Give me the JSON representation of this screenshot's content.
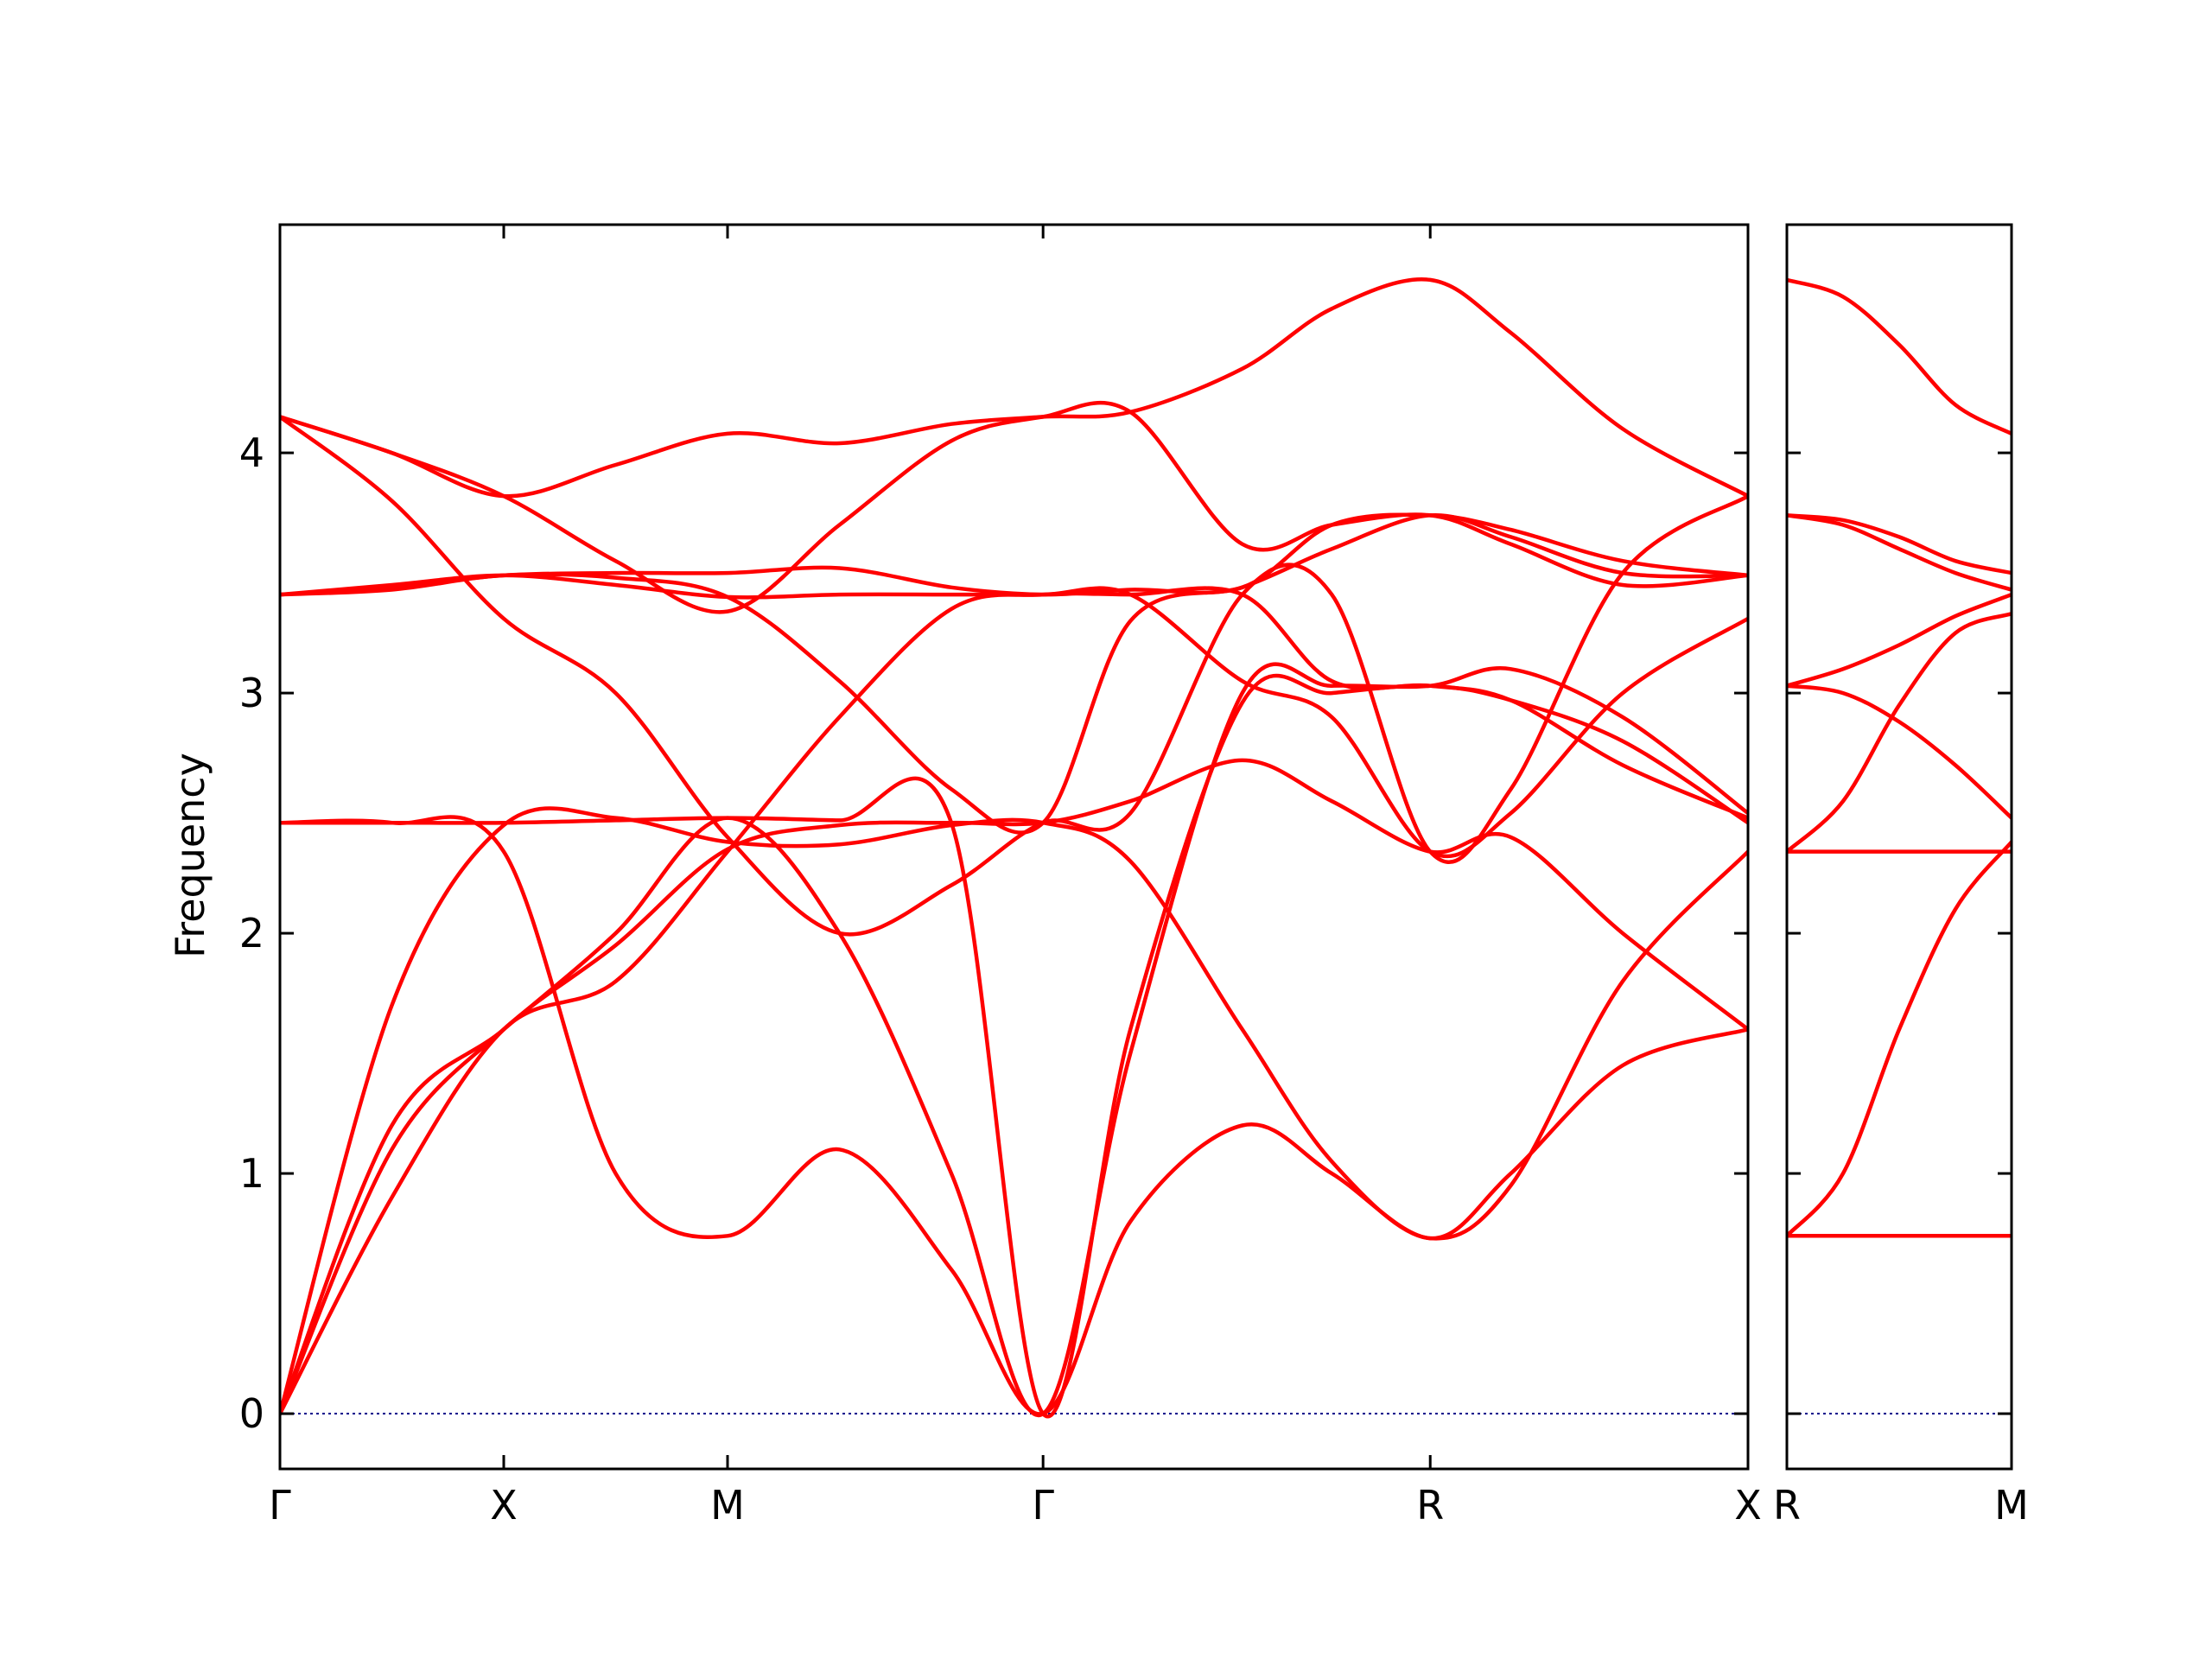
{
  "chart_data": {
    "type": "line",
    "ylabel": "Frequency",
    "ylim": [
      -0.23,
      4.95
    ],
    "yticks": [
      0,
      1,
      2,
      3,
      4
    ],
    "line_color": "#ff0000",
    "zero_line_color": "#00008b",
    "grid": false,
    "panels": [
      {
        "xlim": [
          0,
          6.56
        ],
        "points": [
          {
            "label": "Γ",
            "x": 0
          },
          {
            "label": "X",
            "x": 1.0
          },
          {
            "label": "M",
            "x": 2.0
          },
          {
            "label": "Γ",
            "x": 3.41
          },
          {
            "label": "R",
            "x": 5.14
          },
          {
            "label": "X",
            "x": 6.56
          }
        ],
        "bands": [
          {
            "x": [
              0,
              0.5,
              1.0,
              1.5,
              2.0,
              2.5,
              3.0,
              3.41,
              3.8,
              4.3,
              4.7,
              5.14,
              5.5,
              6.0,
              6.56
            ],
            "y": [
              0,
              1.1,
              1.6,
              1.95,
              2.35,
              2.45,
              2.46,
              2.46,
              2.55,
              2.72,
              2.55,
              2.34,
              2.4,
              2.0,
              1.6
            ]
          },
          {
            "x": [
              0,
              0.5,
              1.0,
              1.5,
              2.0,
              2.5,
              3.0,
              3.41,
              3.8,
              4.3,
              4.7,
              5.14,
              5.5,
              6.0,
              6.56
            ],
            "y": [
              0,
              1.7,
              2.45,
              2.48,
              2.38,
              2.37,
              2.45,
              2.46,
              2.3,
              1.6,
              1.05,
              0.73,
              1.0,
              1.45,
              1.6
            ]
          },
          {
            "x": [
              0,
              0.5,
              1.0,
              1.5,
              2.0,
              2.5,
              3.0,
              3.41,
              3.8,
              4.3,
              4.7,
              5.14,
              5.5,
              6.0,
              6.56
            ],
            "y": [
              2.46,
              2.46,
              2.34,
              1.0,
              0.74,
              1.1,
              0.6,
              0,
              0.8,
              1.2,
              1.0,
              0.73,
              0.95,
              1.8,
              2.34
            ]
          },
          {
            "x": [
              0,
              0.5,
              1.0,
              1.5,
              2.0,
              2.5,
              3.0,
              3.41,
              3.8,
              4.3,
              4.7,
              5.14,
              5.5,
              6.0,
              6.56
            ],
            "y": [
              2.46,
              2.46,
              2.46,
              2.47,
              2.48,
              2.47,
              2.46,
              0,
              1.6,
              2.96,
              3.0,
              3.03,
              2.97,
              2.8,
              2.46
            ]
          },
          {
            "x": [
              0,
              0.5,
              1.0,
              1.5,
              2.0,
              2.5,
              3.0,
              3.41,
              3.8,
              4.3,
              4.7,
              5.14,
              5.5,
              6.0,
              6.56
            ],
            "y": [
              0,
              1.2,
              1.6,
              2.0,
              2.48,
              2.0,
              1.0,
              0,
              1.5,
              3.0,
              3.03,
              3.03,
              3.1,
              2.9,
              2.5
            ]
          },
          {
            "x": [
              0,
              0.5,
              1.0,
              1.5,
              2.0,
              2.5,
              3.0,
              3.41,
              3.8,
              4.3,
              4.7,
              5.14,
              5.5,
              6.0,
              6.56
            ],
            "y": [
              3.41,
              3.43,
              3.49,
              3.48,
              3.4,
              3.05,
              2.6,
              2.46,
              3.3,
              3.44,
              3.6,
              3.74,
              3.65,
              3.5,
              3.49
            ]
          },
          {
            "x": [
              0,
              0.5,
              1.0,
              1.5,
              2.0,
              2.5,
              3.0,
              3.41,
              3.8,
              4.3,
              4.7,
              5.14,
              5.5,
              6.0,
              6.56
            ],
            "y": [
              3.41,
              3.44,
              3.49,
              3.5,
              3.5,
              3.52,
              3.44,
              3.41,
              3.43,
              3.44,
              3.7,
              3.74,
              3.68,
              3.55,
              3.49
            ]
          },
          {
            "x": [
              0,
              0.5,
              1.0,
              1.5,
              2.0,
              2.5,
              3.0,
              3.41,
              3.8,
              4.3,
              4.7,
              5.14,
              5.5,
              6.0,
              6.56
            ],
            "y": [
              4.15,
              3.8,
              3.31,
              3.0,
              2.4,
              2.0,
              2.2,
              2.46,
              2.5,
              3.41,
              3.41,
              2.34,
              2.6,
              3.5,
              3.82
            ]
          },
          {
            "x": [
              0,
              0.5,
              1.0,
              1.5,
              2.0,
              2.5,
              3.0,
              3.41,
              3.8,
              4.3,
              4.7,
              5.14,
              5.5,
              6.0,
              6.56
            ],
            "y": [
              4.15,
              4.0,
              3.82,
              3.55,
              3.34,
              3.7,
              4.05,
              4.15,
              4.17,
              3.62,
              3.7,
              3.74,
              3.62,
              3.45,
              3.49
            ]
          },
          {
            "x": [
              0,
              0.5,
              1.0,
              1.5,
              2.0,
              2.5,
              3.0,
              3.41,
              3.8,
              4.3,
              4.7,
              5.14,
              5.5,
              6.0,
              6.56
            ],
            "y": [
              4.15,
              4.0,
              3.82,
              3.95,
              4.08,
              4.04,
              4.12,
              4.15,
              4.17,
              4.35,
              4.6,
              4.72,
              4.5,
              4.1,
              3.82
            ]
          },
          {
            "x": [
              0,
              0.5,
              1.0,
              1.5,
              2.0,
              2.5,
              3.0,
              3.41,
              3.8,
              4.3,
              4.7,
              5.14,
              5.5,
              6.0,
              6.56
            ],
            "y": [
              3.41,
              3.45,
              3.49,
              3.45,
              3.4,
              3.41,
              3.41,
              3.41,
              3.41,
              3.05,
              2.9,
              2.34,
              2.5,
              3.0,
              3.31
            ]
          },
          {
            "x": [
              0,
              0.5,
              1.0,
              1.5,
              2.0,
              2.5,
              3.0,
              3.41,
              3.8,
              4.3,
              4.7,
              5.14,
              5.5,
              6.0,
              6.56
            ],
            "y": [
              0,
              0.9,
              1.6,
              1.8,
              2.34,
              2.9,
              3.35,
              3.41,
              3.41,
              3.41,
              3.05,
              3.03,
              2.97,
              2.7,
              2.48
            ]
          }
        ]
      },
      {
        "xlim": [
          0,
          1.0
        ],
        "points": [
          {
            "label": "R",
            "x": 0
          },
          {
            "label": "M",
            "x": 1.0
          }
        ],
        "bands": [
          {
            "x": [
              0,
              1.0
            ],
            "y": [
              0.74,
              0.74
            ]
          },
          {
            "x": [
              0,
              0.25,
              0.5,
              0.75,
              1.0
            ],
            "y": [
              0.74,
              1.0,
              1.6,
              2.1,
              2.38
            ]
          },
          {
            "x": [
              0,
              1.0
            ],
            "y": [
              2.34,
              2.34
            ]
          },
          {
            "x": [
              0,
              0.25,
              0.5,
              0.75,
              1.0
            ],
            "y": [
              2.34,
              2.55,
              2.95,
              3.25,
              3.33
            ]
          },
          {
            "x": [
              0,
              0.25,
              0.5,
              0.75,
              1.0
            ],
            "y": [
              3.03,
              3.0,
              2.88,
              2.7,
              2.48
            ]
          },
          {
            "x": [
              0,
              0.25,
              0.5,
              0.75,
              1.0
            ],
            "y": [
              3.03,
              3.1,
              3.2,
              3.32,
              3.41
            ]
          },
          {
            "x": [
              0,
              0.25,
              0.5,
              0.75,
              1.0
            ],
            "y": [
              3.74,
              3.7,
              3.6,
              3.5,
              3.43
            ]
          },
          {
            "x": [
              0,
              0.25,
              0.5,
              0.75,
              1.0
            ],
            "y": [
              3.74,
              3.72,
              3.65,
              3.55,
              3.5
            ]
          },
          {
            "x": [
              0,
              0.25,
              0.5,
              0.75,
              1.0
            ],
            "y": [
              4.72,
              4.65,
              4.45,
              4.2,
              4.08
            ]
          }
        ]
      }
    ]
  }
}
